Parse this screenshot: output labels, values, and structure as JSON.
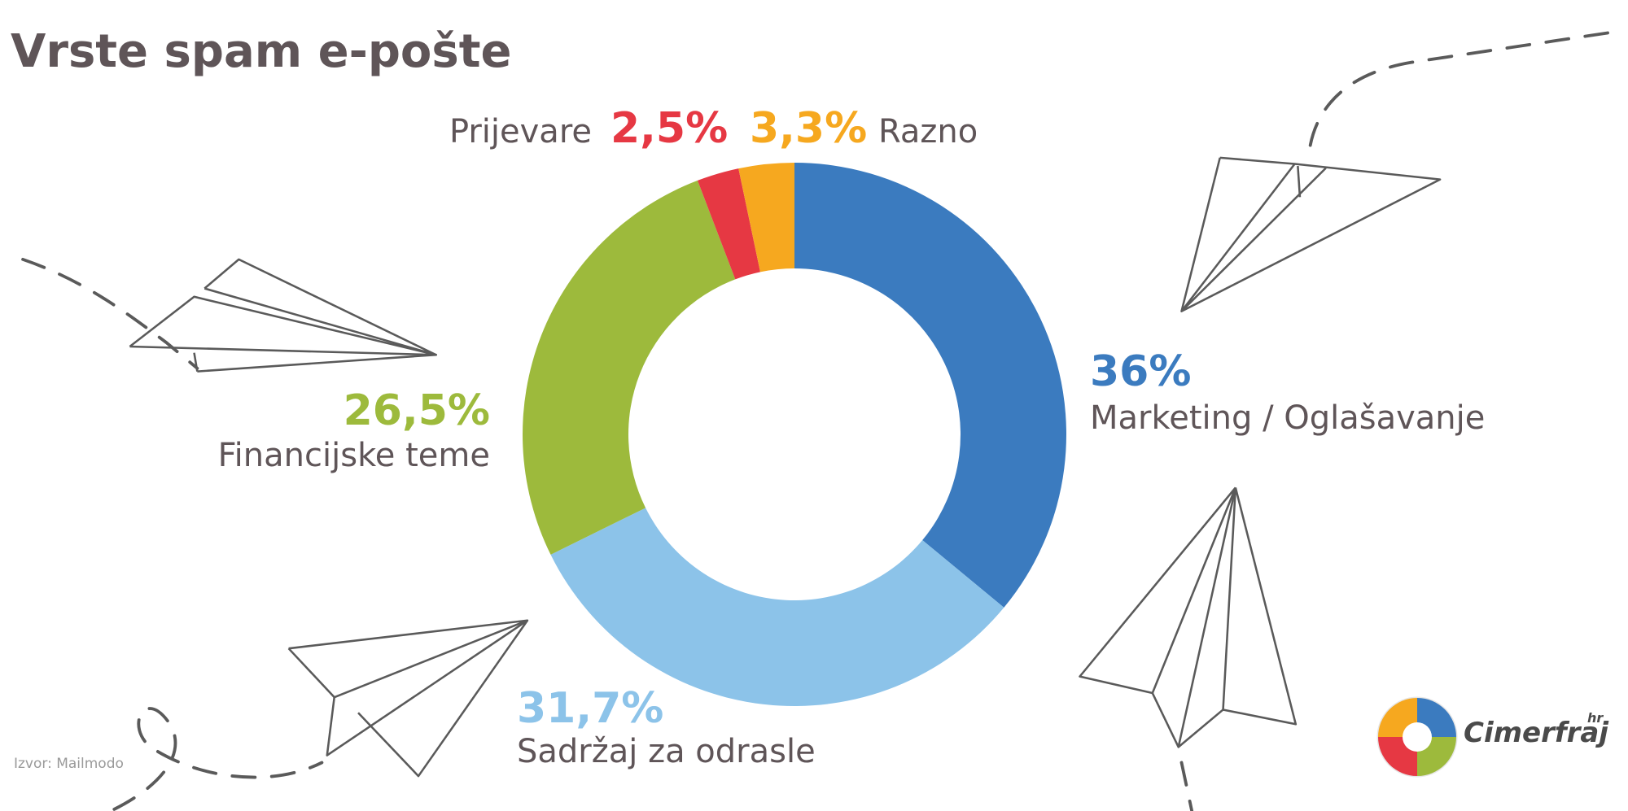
{
  "chart_data": {
    "type": "donut",
    "title": "Vrste spam e-pošte",
    "categories": [
      "Marketing / Oglašavanje",
      "Sadržaj za odrasle",
      "Financijske teme",
      "Prijevare",
      "Razno"
    ],
    "values": [
      36,
      31.7,
      26.5,
      2.5,
      3.3
    ],
    "value_labels": [
      "36%",
      "31,7%",
      "26,5%",
      "2,5%",
      "3,3%"
    ],
    "colors": [
      "#3b7bbf",
      "#8cc3e9",
      "#9dba3c",
      "#e63843",
      "#f6a81f"
    ],
    "source": "Izvor: Mailmodo"
  },
  "logo": {
    "name": "Cimerfraj",
    "suffix": "hr"
  }
}
